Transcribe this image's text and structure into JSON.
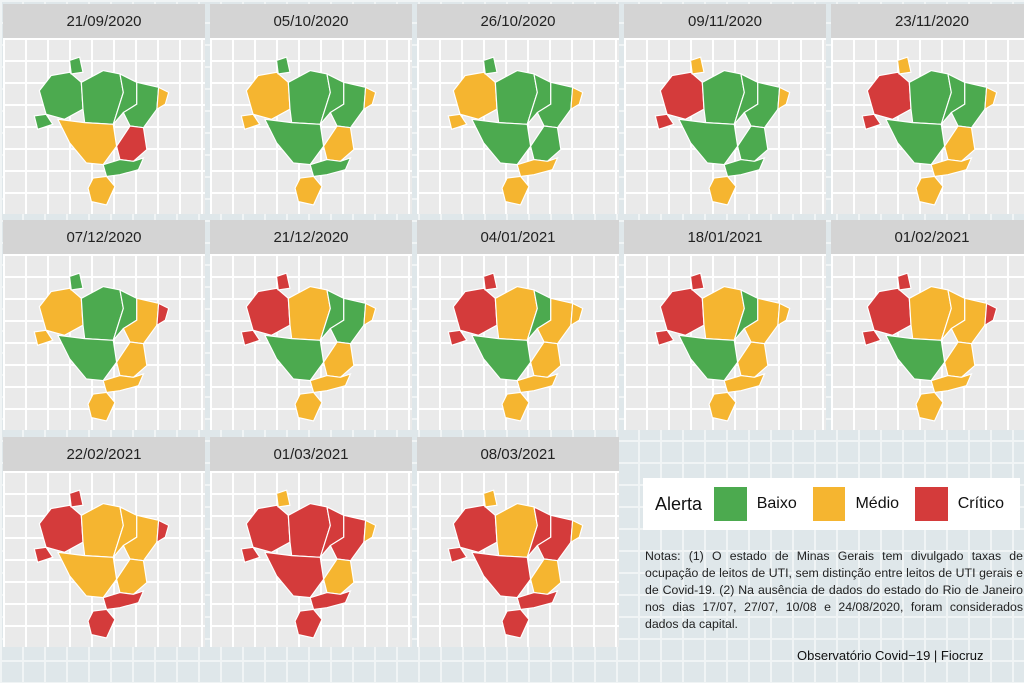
{
  "colors": {
    "baixo": "#4caa4f",
    "medio": "#f5b530",
    "critico": "#d43b3b"
  },
  "legend": {
    "title": "Alerta",
    "baixo": "Baixo",
    "medio": "Médio",
    "critico": "Crítico"
  },
  "notes": "Notas: (1) O estado de Minas Gerais tem divulgado taxas de ocupação de leitos de UTI, sem distinção entre leitos de UTI gerais e de Covid-19. (2) Na ausência de dados do estado do Rio de Janeiro nos dias 17/07, 27/07, 10/08 e 24/08/2020, foram considerados dados da capital.",
  "credit": "Observatório Covid−19 | Fiocruz",
  "maps": [
    {
      "date": "21/09/2020",
      "n": "g",
      "ne": "g",
      "cw": "o",
      "se": "g",
      "mg": "r",
      "s": "o",
      "ac": "g",
      "ma": "g",
      "pe": "o",
      "rr": "g",
      "am": "g"
    },
    {
      "date": "05/10/2020",
      "n": "g",
      "ne": "g",
      "cw": "g",
      "se": "g",
      "mg": "o",
      "s": "o",
      "ac": "o",
      "ma": "g",
      "pe": "o",
      "rr": "g",
      "am": "o"
    },
    {
      "date": "26/10/2020",
      "n": "g",
      "ne": "g",
      "cw": "g",
      "se": "o",
      "mg": "g",
      "s": "o",
      "ac": "o",
      "ma": "g",
      "pe": "o",
      "rr": "g",
      "am": "o"
    },
    {
      "date": "09/11/2020",
      "n": "g",
      "ne": "g",
      "cw": "g",
      "se": "g",
      "mg": "g",
      "s": "o",
      "ac": "r",
      "ma": "g",
      "pe": "o",
      "rr": "o",
      "am": "r"
    },
    {
      "date": "23/11/2020",
      "n": "g",
      "ne": "g",
      "cw": "g",
      "se": "o",
      "mg": "o",
      "s": "o",
      "ac": "r",
      "ma": "g",
      "pe": "o",
      "rr": "o",
      "am": "r"
    },
    {
      "date": "07/12/2020",
      "n": "g",
      "ne": "o",
      "cw": "g",
      "se": "o",
      "mg": "o",
      "s": "o",
      "ac": "o",
      "ma": "g",
      "pe": "r",
      "rr": "g",
      "am": "o"
    },
    {
      "date": "21/12/2020",
      "n": "o",
      "ne": "g",
      "cw": "g",
      "se": "o",
      "mg": "o",
      "s": "o",
      "ac": "r",
      "ma": "g",
      "pe": "o",
      "rr": "r",
      "am": "r"
    },
    {
      "date": "04/01/2021",
      "n": "o",
      "ne": "o",
      "cw": "g",
      "se": "o",
      "mg": "o",
      "s": "o",
      "ac": "r",
      "ma": "g",
      "pe": "o",
      "rr": "r",
      "am": "r"
    },
    {
      "date": "18/01/2021",
      "n": "o",
      "ne": "o",
      "cw": "g",
      "se": "o",
      "mg": "o",
      "s": "o",
      "ac": "r",
      "ma": "g",
      "pe": "o",
      "rr": "r",
      "am": "r"
    },
    {
      "date": "01/02/2021",
      "n": "o",
      "ne": "o",
      "cw": "g",
      "se": "o",
      "mg": "o",
      "s": "o",
      "ac": "r",
      "ma": "o",
      "pe": "r",
      "rr": "r",
      "am": "r"
    },
    {
      "date": "22/02/2021",
      "n": "o",
      "ne": "o",
      "cw": "o",
      "se": "r",
      "mg": "o",
      "s": "r",
      "ac": "r",
      "ma": "o",
      "pe": "r",
      "rr": "r",
      "am": "r"
    },
    {
      "date": "01/03/2021",
      "n": "r",
      "ne": "r",
      "cw": "r",
      "se": "r",
      "mg": "o",
      "s": "r",
      "ac": "r",
      "ma": "r",
      "pe": "o",
      "rr": "o",
      "am": "r"
    },
    {
      "date": "08/03/2021",
      "n": "o",
      "ne": "r",
      "cw": "r",
      "se": "r",
      "mg": "o",
      "s": "r",
      "ac": "r",
      "ma": "r",
      "pe": "o",
      "rr": "o",
      "am": "r"
    }
  ]
}
